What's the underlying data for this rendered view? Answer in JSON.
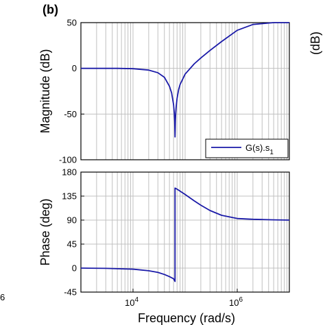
{
  "panel_label": "(b)",
  "clipped_left_text": "6",
  "clipped_right_text": "(dB)",
  "colors": {
    "series": "#1a1aa8",
    "grid": "#c0c0c0",
    "axes": "#000000"
  },
  "chart_data": [
    {
      "type": "line",
      "name": "magnitude",
      "ylabel": "Magnitude (dB)",
      "xlabel": "",
      "xscale": "log",
      "xlim": [
        1000,
        10000000
      ],
      "ylim": [
        -100,
        50
      ],
      "yticks": [
        "50",
        "0",
        "-50",
        "-100"
      ],
      "grid": true,
      "legend": {
        "placement": "bottom-right",
        "label": "G(s).s",
        "label_sub": "1"
      },
      "series": [
        {
          "name": "G(s).s1",
          "x": [
            1000,
            5000,
            10000,
            20000,
            30000,
            40000,
            50000,
            55000,
            60000,
            62000,
            63000,
            64000,
            65000,
            66000,
            67000,
            68000,
            70000,
            75000,
            80000,
            100000,
            150000,
            200000,
            300000,
            500000,
            1000000,
            2000000,
            5000000,
            10000000
          ],
          "y": [
            0,
            0,
            -0.4,
            -1.9,
            -4.8,
            -9.8,
            -19.6,
            -26.8,
            -39.7,
            -49.3,
            -57.5,
            -75,
            -57.5,
            -49,
            -43.5,
            -39.5,
            -33,
            -23.3,
            -17.7,
            -6.3,
            5,
            11.3,
            19.6,
            29.3,
            41.6,
            48,
            50,
            50
          ]
        }
      ]
    },
    {
      "type": "line",
      "name": "phase",
      "ylabel": "Phase (deg)",
      "xlabel": "Frequency (rad/s)",
      "xscale": "log",
      "xlim": [
        1000,
        10000000
      ],
      "ylim": [
        -45,
        180
      ],
      "yticks": [
        "180",
        "135",
        "90",
        "45",
        "0",
        "-45"
      ],
      "xticks": [
        {
          "value": 10000,
          "base": "10",
          "exp": "4"
        },
        {
          "value": 1000000,
          "base": "10",
          "exp": "6"
        }
      ],
      "grid": true,
      "series": [
        {
          "name": "G(s).s1",
          "x": [
            1000,
            3000,
            10000,
            20000,
            30000,
            40000,
            50000,
            60000,
            64000,
            64000,
            70000,
            100000,
            150000,
            200000,
            300000,
            500000,
            1000000,
            2000000,
            5000000,
            10000000
          ],
          "y": [
            0,
            -0.5,
            -2,
            -5,
            -8,
            -12,
            -16,
            -20,
            -25,
            150,
            148,
            138,
            126,
            118,
            108,
            99,
            93,
            91.5,
            90.5,
            90
          ]
        }
      ]
    }
  ]
}
